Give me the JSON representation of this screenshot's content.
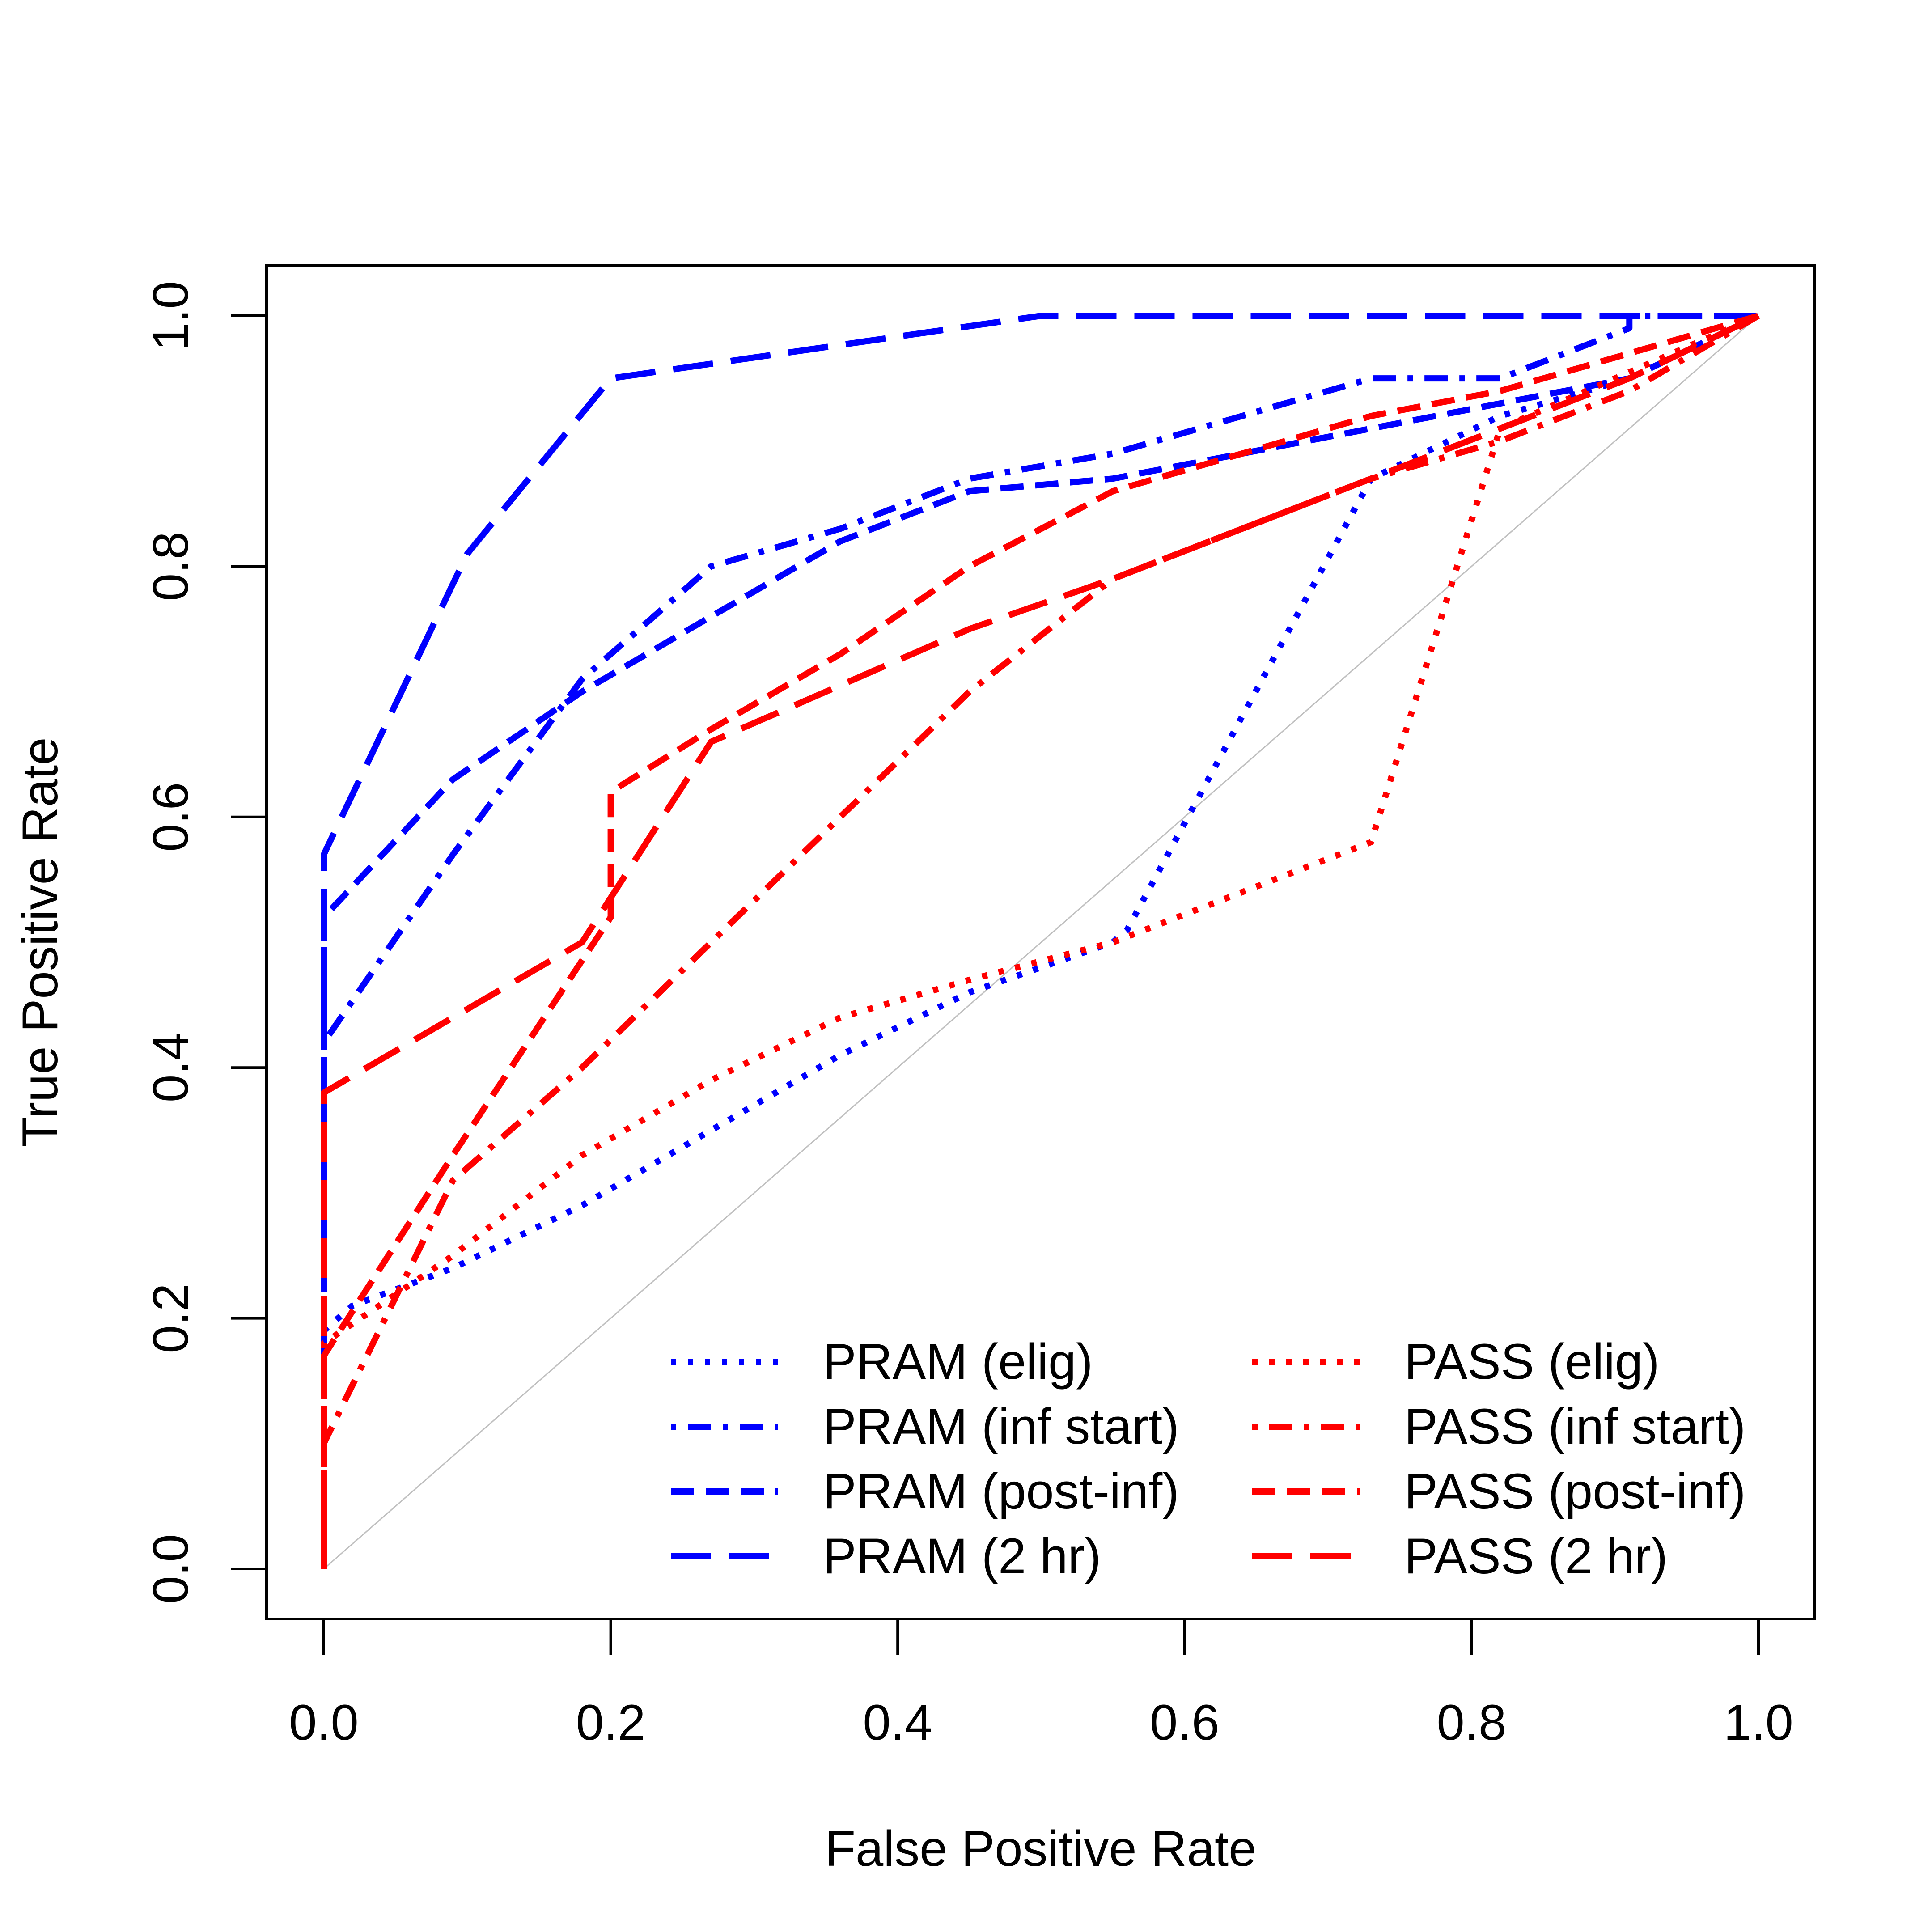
{
  "chart_data": {
    "type": "line",
    "xlabel": "False Positive Rate",
    "ylabel": "True Positive Rate",
    "xlim": [
      0,
      1
    ],
    "ylim": [
      0,
      1
    ],
    "xticks": [
      "0.0",
      "0.2",
      "0.4",
      "0.6",
      "0.8",
      "1.0"
    ],
    "yticks": [
      "0.0",
      "0.2",
      "0.4",
      "0.6",
      "0.8",
      "1.0"
    ],
    "grid": false,
    "legend_position": "bottom-right",
    "reference_line": {
      "from": [
        0,
        0
      ],
      "to": [
        1,
        1
      ],
      "color": "#c0c0c0"
    },
    "series": [
      {
        "name": "PRAM (elig)",
        "color": "#0000ff",
        "dash": "dotted",
        "x": [
          0,
          0,
          0.02,
          0.09,
          0.18,
          0.27,
          0.36,
          0.45,
          0.55,
          0.56,
          0.64,
          0.73,
          0.82,
          0.91,
          1.0
        ],
        "y": [
          0,
          0.19,
          0.21,
          0.24,
          0.29,
          0.35,
          0.41,
          0.46,
          0.5,
          0.51,
          0.68,
          0.87,
          0.92,
          0.95,
          1.0
        ]
      },
      {
        "name": "PRAM (inf start)",
        "color": "#0000ff",
        "dash": "dotdash",
        "x": [
          0,
          0,
          0.09,
          0.18,
          0.27,
          0.36,
          0.45,
          0.55,
          0.64,
          0.73,
          0.82,
          0.91,
          0.91,
          1.0
        ],
        "y": [
          0,
          0.42,
          0.57,
          0.71,
          0.8,
          0.83,
          0.87,
          0.89,
          0.92,
          0.95,
          0.95,
          0.99,
          1.0,
          1.0
        ]
      },
      {
        "name": "PRAM (post-inf)",
        "color": "#0000ff",
        "dash": "dashed",
        "x": [
          0,
          0,
          0.09,
          0.18,
          0.27,
          0.36,
          0.45,
          0.55,
          0.64,
          0.73,
          0.82,
          0.91,
          1.0
        ],
        "y": [
          0,
          0.52,
          0.63,
          0.7,
          0.76,
          0.82,
          0.86,
          0.87,
          0.89,
          0.91,
          0.93,
          0.95,
          1.0
        ]
      },
      {
        "name": "PRAM (2 hr)",
        "color": "#0000ff",
        "dash": "longdash",
        "x": [
          0,
          0,
          0.1,
          0.2,
          0.5,
          1.0
        ],
        "y": [
          0,
          0.57,
          0.81,
          0.95,
          1.0,
          1.0
        ]
      },
      {
        "name": "PASS (elig)",
        "color": "#ff0000",
        "dash": "dotted",
        "x": [
          0,
          0,
          0.09,
          0.18,
          0.27,
          0.36,
          0.45,
          0.55,
          0.64,
          0.73,
          0.82,
          1.0
        ],
        "y": [
          0,
          0.18,
          0.25,
          0.33,
          0.39,
          0.44,
          0.47,
          0.5,
          0.54,
          0.58,
          0.91,
          1.0
        ]
      },
      {
        "name": "PASS (inf start)",
        "color": "#ff0000",
        "dash": "dotdash",
        "x": [
          0,
          0,
          0.09,
          0.18,
          0.27,
          0.36,
          0.45,
          0.55,
          0.64,
          0.73,
          0.82,
          0.91,
          1.0
        ],
        "y": [
          0,
          0.1,
          0.31,
          0.4,
          0.5,
          0.6,
          0.7,
          0.79,
          0.83,
          0.87,
          0.9,
          0.94,
          1.0
        ]
      },
      {
        "name": "PASS (post-inf)",
        "color": "#ff0000",
        "dash": "dashed",
        "x": [
          0,
          0,
          0.09,
          0.2,
          0.2,
          0.27,
          0.36,
          0.45,
          0.55,
          0.64,
          0.73,
          0.82,
          0.91,
          1.0
        ],
        "y": [
          0,
          0.17,
          0.33,
          0.52,
          0.62,
          0.67,
          0.73,
          0.8,
          0.86,
          0.89,
          0.92,
          0.94,
          0.97,
          1.0
        ]
      },
      {
        "name": "PASS (2 hr)",
        "color": "#ff0000",
        "dash": "longdash",
        "x": [
          0,
          0,
          0.18,
          0.27,
          0.45,
          0.55,
          0.73,
          0.82,
          0.91,
          1.0
        ],
        "y": [
          0,
          0.38,
          0.5,
          0.66,
          0.75,
          0.79,
          0.87,
          0.91,
          0.95,
          1.0
        ]
      }
    ]
  }
}
